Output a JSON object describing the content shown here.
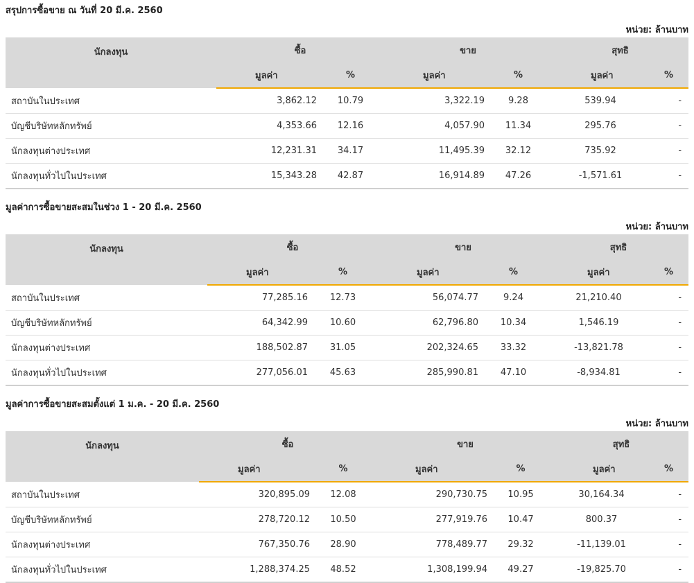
{
  "colors": {
    "header_bg": "#d9d9d9",
    "accent_line": "#f0a800",
    "positive": "#4c9a1c",
    "negative": "#e0242c"
  },
  "sections": [
    {
      "title": "สรุปการซื้อขาย ณ วันที่ 20 มี.ค. 2560",
      "unit": "หน่วย: ล้านบาท",
      "headers": {
        "investor": "นักลงทุน",
        "buy": "ซื้อ",
        "sell": "ขาย",
        "net": "สุทธิ",
        "value": "มูลค่า",
        "percent": "%"
      },
      "rows": [
        {
          "name": "สถาบันในประเทศ",
          "buy_value": "3,862.12",
          "buy_pct": "10.79",
          "sell_value": "3,322.19",
          "sell_pct": "9.28",
          "net_value": "539.94",
          "net_sign": "pos",
          "net_pct": "-"
        },
        {
          "name": "บัญชีบริษัทหลักทรัพย์",
          "buy_value": "4,353.66",
          "buy_pct": "12.16",
          "sell_value": "4,057.90",
          "sell_pct": "11.34",
          "net_value": "295.76",
          "net_sign": "pos",
          "net_pct": "-"
        },
        {
          "name": "นักลงทุนต่างประเทศ",
          "buy_value": "12,231.31",
          "buy_pct": "34.17",
          "sell_value": "11,495.39",
          "sell_pct": "32.12",
          "net_value": "735.92",
          "net_sign": "pos",
          "net_pct": "-"
        },
        {
          "name": "นักลงทุนทั่วไปในประเทศ",
          "buy_value": "15,343.28",
          "buy_pct": "42.87",
          "sell_value": "16,914.89",
          "sell_pct": "47.26",
          "net_value": "-1,571.61",
          "net_sign": "neg",
          "net_pct": "-"
        }
      ]
    },
    {
      "title": "มูลค่าการซื้อขายสะสมในช่วง 1 - 20 มี.ค. 2560",
      "unit": "หน่วย: ล้านบาท",
      "headers": {
        "investor": "นักลงทุน",
        "buy": "ซื้อ",
        "sell": "ขาย",
        "net": "สุทธิ",
        "value": "มูลค่า",
        "percent": "%"
      },
      "rows": [
        {
          "name": "สถาบันในประเทศ",
          "buy_value": "77,285.16",
          "buy_pct": "12.73",
          "sell_value": "56,074.77",
          "sell_pct": "9.24",
          "net_value": "21,210.40",
          "net_sign": "pos",
          "net_pct": "-"
        },
        {
          "name": "บัญชีบริษัทหลักทรัพย์",
          "buy_value": "64,342.99",
          "buy_pct": "10.60",
          "sell_value": "62,796.80",
          "sell_pct": "10.34",
          "net_value": "1,546.19",
          "net_sign": "pos",
          "net_pct": "-"
        },
        {
          "name": "นักลงทุนต่างประเทศ",
          "buy_value": "188,502.87",
          "buy_pct": "31.05",
          "sell_value": "202,324.65",
          "sell_pct": "33.32",
          "net_value": "-13,821.78",
          "net_sign": "neg",
          "net_pct": "-"
        },
        {
          "name": "นักลงทุนทั่วไปในประเทศ",
          "buy_value": "277,056.01",
          "buy_pct": "45.63",
          "sell_value": "285,990.81",
          "sell_pct": "47.10",
          "net_value": "-8,934.81",
          "net_sign": "neg",
          "net_pct": "-"
        }
      ]
    },
    {
      "title": "มูลค่าการซื้อขายสะสมตั้งแต่ 1 ม.ค. - 20 มี.ค. 2560",
      "unit": "หน่วย: ล้านบาท",
      "headers": {
        "investor": "นักลงทุน",
        "buy": "ซื้อ",
        "sell": "ขาย",
        "net": "สุทธิ",
        "value": "มูลค่า",
        "percent": "%"
      },
      "rows": [
        {
          "name": "สถาบันในประเทศ",
          "buy_value": "320,895.09",
          "buy_pct": "12.08",
          "sell_value": "290,730.75",
          "sell_pct": "10.95",
          "net_value": "30,164.34",
          "net_sign": "pos",
          "net_pct": "-"
        },
        {
          "name": "บัญชีบริษัทหลักทรัพย์",
          "buy_value": "278,720.12",
          "buy_pct": "10.50",
          "sell_value": "277,919.76",
          "sell_pct": "10.47",
          "net_value": "800.37",
          "net_sign": "pos",
          "net_pct": "-"
        },
        {
          "name": "นักลงทุนต่างประเทศ",
          "buy_value": "767,350.76",
          "buy_pct": "28.90",
          "sell_value": "778,489.77",
          "sell_pct": "29.32",
          "net_value": "-11,139.01",
          "net_sign": "neg",
          "net_pct": "-"
        },
        {
          "name": "นักลงทุนทั่วไปในประเทศ",
          "buy_value": "1,288,374.25",
          "buy_pct": "48.52",
          "sell_value": "1,308,199.94",
          "sell_pct": "49.27",
          "net_value": "-19,825.70",
          "net_sign": "neg",
          "net_pct": "-"
        }
      ]
    }
  ]
}
